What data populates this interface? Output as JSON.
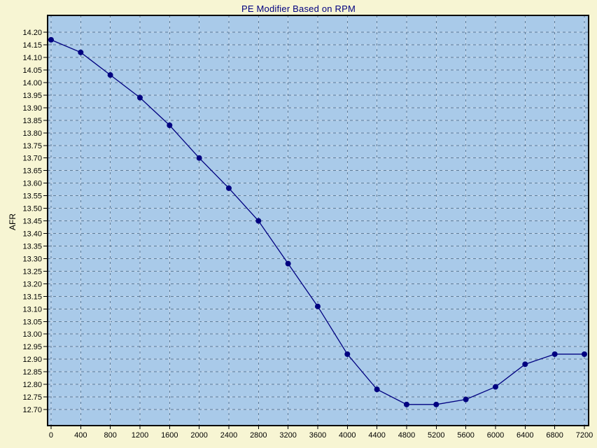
{
  "chart": {
    "title": "PE Modifier Based on RPM",
    "y_axis_title": "AFR"
  },
  "colors": {
    "background": "#F7F5D3",
    "plot_background": "#A9CAE9",
    "grid_dark": "#5F7B96",
    "grid_light": "#C6D8EC",
    "line": "#000080",
    "marker": "#000080",
    "plot_border": "#000000",
    "title_text": "#000080",
    "tick_text": "#000000"
  },
  "chart_data": {
    "type": "line",
    "title": "PE Modifier Based on RPM",
    "xlabel": "",
    "ylabel": "AFR",
    "x": [
      0,
      400,
      800,
      1200,
      1600,
      2000,
      2400,
      2800,
      3200,
      3600,
      4000,
      4400,
      4800,
      5200,
      5600,
      6000,
      6400,
      6800,
      7200
    ],
    "series": [
      {
        "name": "PE Modifier",
        "values": [
          14.17,
          14.12,
          14.03,
          13.94,
          13.83,
          13.7,
          13.58,
          13.45,
          13.28,
          13.11,
          12.92,
          12.78,
          12.72,
          12.72,
          12.74,
          12.79,
          12.88,
          12.92,
          12.92
        ]
      }
    ],
    "x_ticks": [
      0,
      400,
      800,
      1200,
      1600,
      2000,
      2400,
      2800,
      3200,
      3600,
      4000,
      4400,
      4800,
      5200,
      5600,
      6000,
      6400,
      6800,
      7200
    ],
    "y_tick_min": 12.7,
    "y_tick_max": 14.2,
    "y_tick_step": 0.05,
    "xlim": [
      -47,
      7257
    ],
    "ylim": [
      12.636,
      14.267
    ],
    "grid": true,
    "legend": false,
    "marker_shape": "circle"
  }
}
